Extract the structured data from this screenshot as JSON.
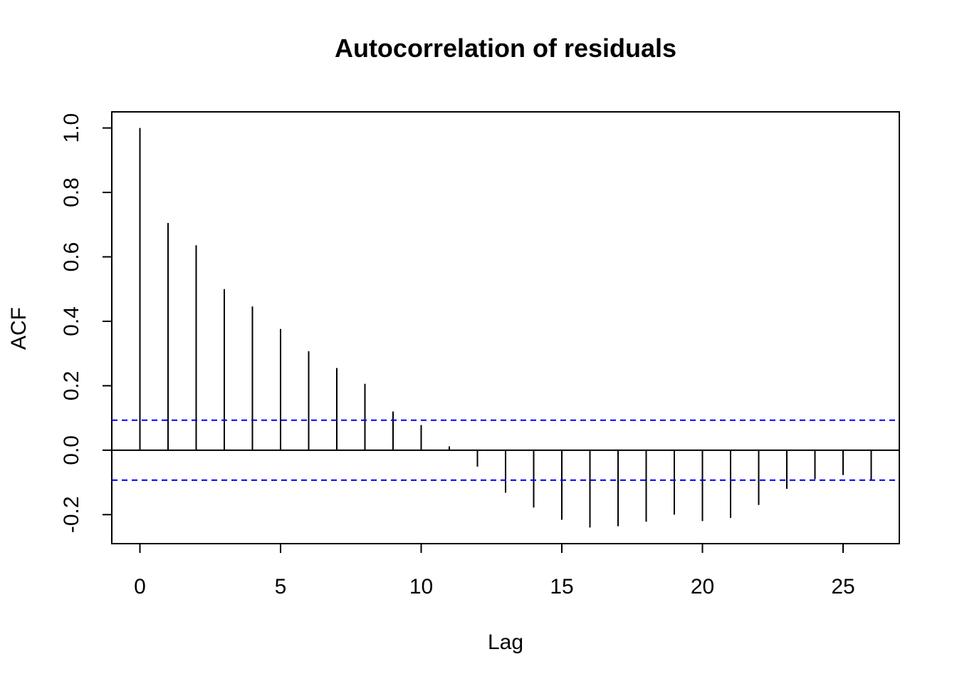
{
  "chart_data": {
    "type": "bar",
    "subtype": "acf-spikes",
    "title": "Autocorrelation of residuals",
    "xlabel": "Lag",
    "ylabel": "ACF",
    "xlim": [
      -1,
      27
    ],
    "ylim": [
      -0.29,
      1.05
    ],
    "x_ticks": [
      0,
      5,
      10,
      15,
      20,
      25
    ],
    "x_tick_labels": [
      "0",
      "5",
      "10",
      "15",
      "20",
      "25"
    ],
    "y_ticks": [
      -0.2,
      0.0,
      0.2,
      0.4,
      0.6,
      0.8,
      1.0
    ],
    "y_tick_labels": [
      "-0.2",
      "0.0",
      "0.2",
      "0.4",
      "0.6",
      "0.8",
      "1.0"
    ],
    "grid": false,
    "zero_line": 0.0,
    "confidence_bounds": [
      0.093,
      -0.093
    ],
    "confidence_color": "#0000ff",
    "spike_color": "#000000",
    "lags": [
      0,
      1,
      2,
      3,
      4,
      5,
      6,
      7,
      8,
      9,
      10,
      11,
      12,
      13,
      14,
      15,
      16,
      17,
      18,
      19,
      20,
      21,
      22,
      23,
      24,
      25,
      26
    ],
    "values": [
      1.0,
      0.705,
      0.636,
      0.5,
      0.446,
      0.376,
      0.307,
      0.255,
      0.206,
      0.12,
      0.078,
      0.012,
      -0.051,
      -0.132,
      -0.178,
      -0.216,
      -0.24,
      -0.236,
      -0.222,
      -0.2,
      -0.22,
      -0.21,
      -0.17,
      -0.12,
      -0.09,
      -0.077,
      -0.094
    ]
  }
}
